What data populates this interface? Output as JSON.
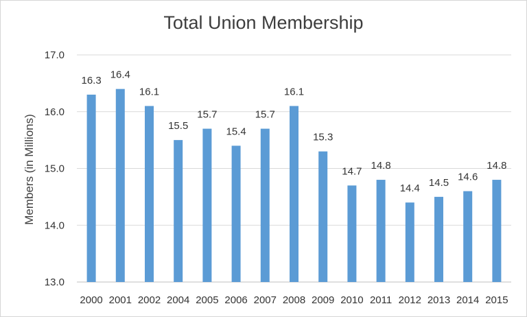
{
  "chart_data": {
    "type": "bar",
    "title": "Total Union Membership",
    "xlabel": "",
    "ylabel": "Members (in Millions)",
    "categories": [
      "2000",
      "2001",
      "2002",
      "2004",
      "2005",
      "2006",
      "2007",
      "2008",
      "2009",
      "2010",
      "2011",
      "2012",
      "2013",
      "2014",
      "2015"
    ],
    "values": [
      16.3,
      16.4,
      16.1,
      15.5,
      15.7,
      15.4,
      15.7,
      16.1,
      15.3,
      14.7,
      14.8,
      14.4,
      14.5,
      14.6,
      14.8
    ],
    "value_labels": [
      "16.3",
      "16.4",
      "16.1",
      "15.5",
      "15.7",
      "15.4",
      "15.7",
      "16.1",
      "15.3",
      "14.7",
      "14.8",
      "14.4",
      "14.5",
      "14.6",
      "14.8"
    ],
    "ylim": [
      13.0,
      17.0
    ],
    "yticks": [
      "13.0",
      "14.0",
      "15.0",
      "16.0",
      "17.0"
    ],
    "grid": true,
    "bar_color": "#5b9bd5",
    "grid_color": "#d9d9d9"
  }
}
